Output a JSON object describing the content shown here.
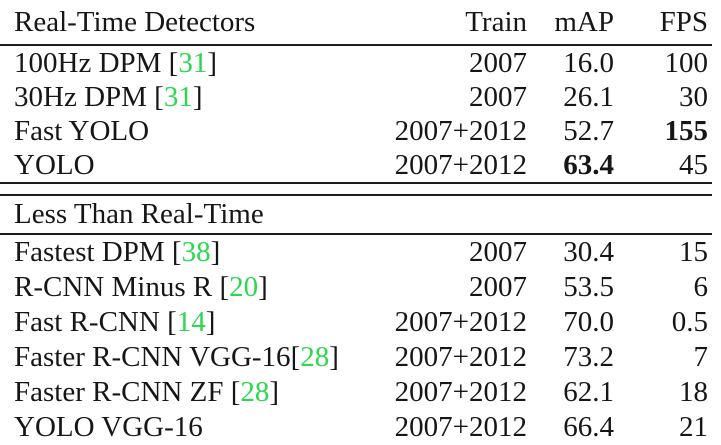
{
  "colors": {
    "citation_green": "#2bd84f",
    "text": "#161616",
    "rule": "#1d1d1d",
    "background": "#ffffff"
  },
  "table": {
    "columns": [
      "Real-Time Detectors",
      "Train",
      "mAP",
      "FPS"
    ],
    "sections": [
      {
        "rows": [
          {
            "name": "100Hz DPM ",
            "cite": "31",
            "train": "2007",
            "map": "16.0",
            "fps": "100",
            "bold_map": false,
            "bold_fps": false
          },
          {
            "name": "30Hz DPM ",
            "cite": "31",
            "train": "2007",
            "map": "26.1",
            "fps": "30",
            "bold_map": false,
            "bold_fps": false
          },
          {
            "name": "Fast YOLO",
            "cite": null,
            "train": "2007+2012",
            "map": "52.7",
            "fps": "155",
            "bold_map": false,
            "bold_fps": true
          },
          {
            "name": "YOLO",
            "cite": null,
            "train": "2007+2012",
            "map": "63.4",
            "fps": "45",
            "bold_map": true,
            "bold_fps": false
          }
        ]
      },
      {
        "title": "Less Than Real-Time",
        "rows": [
          {
            "name": "Fastest DPM ",
            "cite": "38",
            "train": "2007",
            "map": "30.4",
            "fps": "15",
            "bold_map": false,
            "bold_fps": false
          },
          {
            "name": "R-CNN Minus R ",
            "cite": "20",
            "train": "2007",
            "map": "53.5",
            "fps": "6",
            "bold_map": false,
            "bold_fps": false
          },
          {
            "name": "Fast R-CNN ",
            "cite": "14",
            "train": "2007+2012",
            "map": "70.0",
            "fps": "0.5",
            "bold_map": false,
            "bold_fps": false
          },
          {
            "name": "Faster R-CNN VGG-16",
            "cite": "28",
            "train": "2007+2012",
            "map": "73.2",
            "fps": "7",
            "bold_map": false,
            "bold_fps": false
          },
          {
            "name": "Faster R-CNN ZF ",
            "cite": "28",
            "train": "2007+2012",
            "map": "62.1",
            "fps": "18",
            "bold_map": false,
            "bold_fps": false
          },
          {
            "name": "YOLO VGG-16",
            "cite": null,
            "train": "2007+2012",
            "map": "66.4",
            "fps": "21",
            "bold_map": false,
            "bold_fps": false
          }
        ]
      }
    ]
  }
}
